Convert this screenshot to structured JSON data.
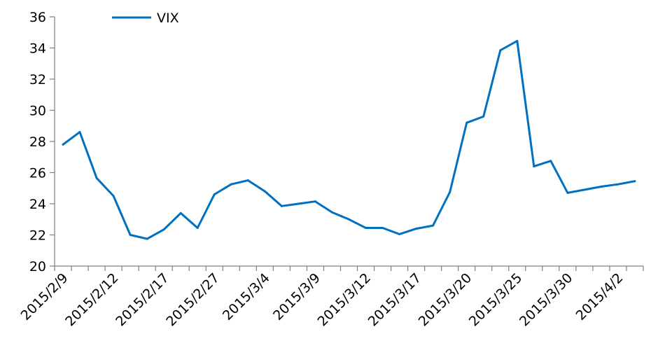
{
  "chart_data": {
    "type": "line",
    "title": "",
    "xlabel": "",
    "ylabel": "",
    "ylim": [
      20,
      36
    ],
    "yticks": [
      20,
      22,
      24,
      26,
      28,
      30,
      32,
      34,
      36
    ],
    "grid": false,
    "legend_position": "top-left",
    "x_tick_labels": [
      "2015/2/9",
      "2015/2/12",
      "2015/2/17",
      "2015/2/27",
      "2015/3/4",
      "2015/3/9",
      "2015/3/12",
      "2015/3/17",
      "2015/3/20",
      "2015/3/25",
      "2015/3/30",
      "2015/4/2"
    ],
    "x_tick_positions": [
      0,
      3,
      6,
      9,
      12,
      15,
      18,
      21,
      24,
      27,
      30,
      33
    ],
    "series": [
      {
        "name": "VIX",
        "color": "#0070c0",
        "values": [
          27.8,
          28.6,
          25.65,
          24.5,
          22.0,
          21.75,
          22.35,
          23.4,
          22.45,
          24.6,
          25.25,
          25.5,
          24.8,
          23.85,
          24.0,
          24.15,
          23.45,
          23.0,
          22.45,
          22.45,
          22.05,
          22.4,
          22.6,
          24.75,
          29.2,
          29.6,
          33.85,
          34.45,
          26.4,
          26.75,
          24.7,
          24.9,
          25.1,
          25.25,
          25.45
        ]
      }
    ]
  }
}
